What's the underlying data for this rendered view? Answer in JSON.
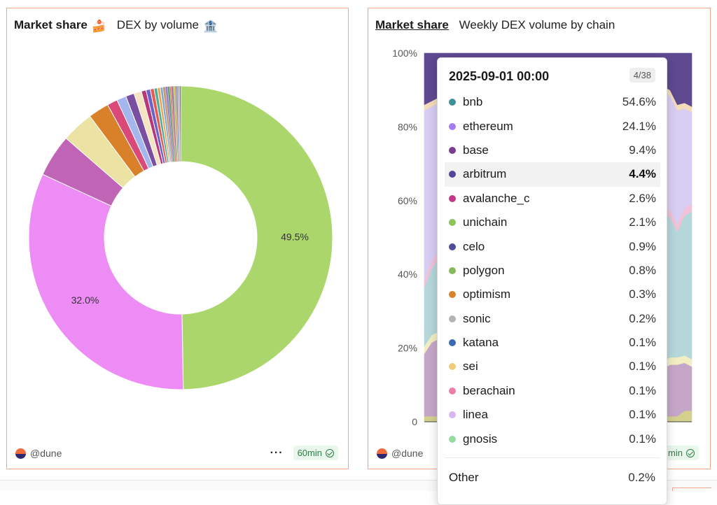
{
  "left_panel": {
    "title": "Market share",
    "title_emoji": "🍰",
    "subtitle": "DEX by volume",
    "subtitle_emoji": "🏦",
    "author": "@dune",
    "more": "···",
    "refresh": "60min"
  },
  "right_panel": {
    "title": "Market share",
    "subtitle": "Weekly DEX volume by chain",
    "author": "@dune",
    "refresh": "min"
  },
  "tooltip": {
    "date": "2025-09-01 00:00",
    "counter": "4/38",
    "rows": [
      {
        "name": "bnb",
        "value": "54.6%",
        "color": "#3f8f98"
      },
      {
        "name": "ethereum",
        "value": "24.1%",
        "color": "#a57cf0"
      },
      {
        "name": "base",
        "value": "9.4%",
        "color": "#7a3c8f"
      },
      {
        "name": "arbitrum",
        "value": "4.4%",
        "color": "#56469a"
      },
      {
        "name": "avalanche_c",
        "value": "2.6%",
        "color": "#c2378a"
      },
      {
        "name": "unichain",
        "value": "2.1%",
        "color": "#8cc45a"
      },
      {
        "name": "celo",
        "value": "0.9%",
        "color": "#4f4d99"
      },
      {
        "name": "polygon",
        "value": "0.8%",
        "color": "#86b95a"
      },
      {
        "name": "optimism",
        "value": "0.3%",
        "color": "#d9812a"
      },
      {
        "name": "sonic",
        "value": "0.2%",
        "color": "#b3b3b3"
      },
      {
        "name": "katana",
        "value": "0.1%",
        "color": "#3c6bb0"
      },
      {
        "name": "sei",
        "value": "0.1%",
        "color": "#f0cd7a"
      },
      {
        "name": "berachain",
        "value": "0.1%",
        "color": "#ec7fa9"
      },
      {
        "name": "linea",
        "value": "0.1%",
        "color": "#d7b7ef"
      },
      {
        "name": "gnosis",
        "value": "0.1%",
        "color": "#93dba0"
      }
    ],
    "other": {
      "name": "Other",
      "value": "0.2%"
    }
  },
  "chart_data": [
    {
      "type": "pie",
      "title": "Market share",
      "subtitle": "DEX by volume",
      "donut": true,
      "slices": [
        {
          "value": 49.5,
          "color": "#abd66c",
          "label": "49.5%"
        },
        {
          "value": 32.0,
          "color": "#ee8cf5",
          "label": "32.0%"
        },
        {
          "value": 4.5,
          "color": "#c065b5",
          "label": ""
        },
        {
          "value": 3.4,
          "color": "#ebe2a4",
          "label": ""
        },
        {
          "value": 2.2,
          "color": "#d9812a",
          "label": ""
        },
        {
          "value": 1.1,
          "color": "#da4a78",
          "label": ""
        },
        {
          "value": 1.0,
          "color": "#a5b6ee",
          "label": ""
        },
        {
          "value": 0.9,
          "color": "#7a4ea0",
          "label": ""
        },
        {
          "value": 0.8,
          "color": "#f5e3c2",
          "label": ""
        },
        {
          "value": 0.5,
          "color": "#b8377a",
          "label": ""
        },
        {
          "value": 0.45,
          "color": "#6b63c9",
          "label": ""
        },
        {
          "value": 0.4,
          "color": "#e85a4f",
          "label": ""
        },
        {
          "value": 0.35,
          "color": "#4fae9a",
          "label": ""
        },
        {
          "value": 0.3,
          "color": "#f0a24a",
          "label": ""
        },
        {
          "value": 0.28,
          "color": "#7aa7d9",
          "label": ""
        },
        {
          "value": 0.26,
          "color": "#c69c6d",
          "label": ""
        },
        {
          "value": 0.24,
          "color": "#9a7fd1",
          "label": ""
        },
        {
          "value": 0.22,
          "color": "#5f9e6e",
          "label": ""
        },
        {
          "value": 0.2,
          "color": "#e3867a",
          "label": ""
        },
        {
          "value": 0.18,
          "color": "#8d6e9c",
          "label": ""
        },
        {
          "value": 0.16,
          "color": "#b0c46a",
          "label": ""
        },
        {
          "value": 0.15,
          "color": "#d08a5c",
          "label": ""
        },
        {
          "value": 0.14,
          "color": "#6e8fb7",
          "label": ""
        },
        {
          "value": 0.12,
          "color": "#a6a6a6",
          "label": ""
        },
        {
          "value": 0.1,
          "color": "#c2a3d9",
          "label": ""
        },
        {
          "value": 0.1,
          "color": "#5a5a8c",
          "label": ""
        }
      ]
    },
    {
      "type": "area",
      "stacked": true,
      "normalized": true,
      "title": "Market share",
      "subtitle": "Weekly DEX volume by chain",
      "ylim": [
        0,
        100
      ],
      "y_ticks": [
        "0",
        "20%",
        "40%",
        "60%",
        "80%",
        "100%"
      ],
      "x_count": 38,
      "series": [
        {
          "color": "#d4d18e",
          "values": [
            1.5,
            1.5,
            1.5,
            1.5,
            1.5,
            1.5,
            1.5,
            1.5,
            1.5,
            1.5,
            1.5,
            1.5,
            1.5,
            1.5,
            1.5,
            1.5,
            1.5,
            1.5,
            1.5,
            1.5,
            1.5,
            1.5,
            1.5,
            1.5,
            1.5,
            1.5,
            1.5,
            1.5,
            1.5,
            1.5,
            1.5,
            1.5,
            1.5,
            1.5,
            1.5,
            1.5,
            3,
            3
          ]
        },
        {
          "color": "#c6a6c8",
          "values": [
            17,
            20,
            21,
            22,
            20,
            21,
            20,
            19,
            18,
            17,
            16,
            15,
            14,
            14,
            13,
            14,
            15,
            14,
            13,
            12,
            12,
            12,
            11,
            11,
            12,
            12,
            13,
            13,
            12,
            12,
            12,
            11,
            12,
            13,
            14,
            14,
            13,
            12
          ]
        },
        {
          "color": "#f2edc2",
          "values": [
            2,
            2,
            2,
            2,
            2,
            2,
            2,
            2,
            2,
            2,
            2,
            2,
            2,
            2,
            2,
            2,
            2,
            2,
            2,
            2,
            2,
            2,
            2,
            2,
            2,
            2,
            2,
            2,
            2,
            2,
            2,
            2,
            2,
            2,
            2,
            2,
            2,
            2
          ]
        },
        {
          "color": "#b5d7da",
          "values": [
            16,
            18,
            20,
            22,
            24,
            25,
            26,
            27,
            28,
            29,
            30,
            31,
            32,
            33,
            34,
            35,
            36,
            37,
            38,
            39,
            40,
            40,
            41,
            42,
            42,
            42,
            42,
            41,
            41,
            41,
            42,
            42,
            41,
            40,
            38,
            34,
            38,
            40
          ]
        },
        {
          "color": "#f2c1d7",
          "values": [
            2,
            2,
            2,
            2,
            2,
            2,
            2,
            2,
            2,
            2,
            2,
            2,
            2,
            2,
            2,
            2,
            2,
            2,
            2,
            2,
            2,
            2,
            2,
            2,
            2,
            2,
            2,
            2,
            2,
            2,
            2,
            2,
            2,
            2,
            2,
            2,
            2,
            2
          ]
        },
        {
          "color": "#d8cdf3",
          "values": [
            46,
            42,
            40,
            38,
            38,
            37,
            37,
            37,
            37,
            37,
            37,
            37,
            37,
            37,
            37,
            36,
            34,
            34,
            34,
            34,
            33,
            33,
            33,
            32,
            31,
            31,
            30,
            31,
            32,
            32,
            31,
            31,
            31,
            31,
            31,
            31,
            27,
            25
          ]
        },
        {
          "color": "#f4dcb8",
          "values": [
            1.5,
            1.5,
            1.5,
            1.5,
            1.5,
            1.5,
            1.5,
            1.5,
            1.5,
            1.5,
            1.5,
            1.5,
            1.5,
            1.5,
            1.5,
            1.5,
            1.5,
            1.5,
            1.5,
            1.5,
            1.5,
            1.5,
            1.5,
            1.5,
            1.5,
            1.5,
            1.5,
            1.5,
            1.5,
            1.5,
            1.5,
            1.5,
            1.5,
            1.5,
            1.5,
            1.5,
            1.5,
            1.5
          ]
        },
        {
          "color": "#5f4991",
          "values": [
            14,
            13,
            12,
            11,
            11,
            10,
            10,
            10,
            10,
            10,
            10,
            10,
            10,
            9,
            9,
            9,
            9,
            9,
            9,
            9,
            9,
            9,
            9,
            9,
            9,
            9,
            9,
            9,
            9,
            9,
            9,
            10,
            10,
            10,
            10,
            12,
            13,
            13
          ]
        }
      ]
    }
  ]
}
